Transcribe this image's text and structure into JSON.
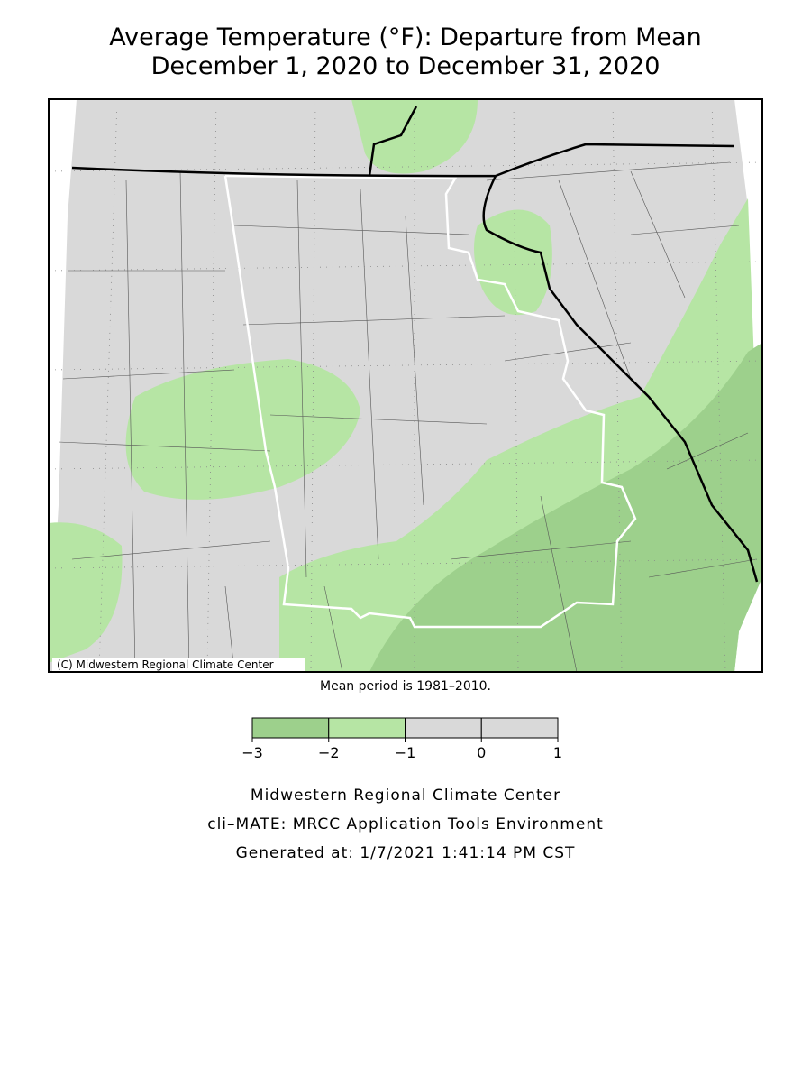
{
  "header": {
    "title_lines": [
      "Average Temperature (°F): Departure from Mean",
      "December 1, 2020 to December 31, 2020"
    ]
  },
  "map": {
    "copyright": "(C) Midwestern Regional Climate Center"
  },
  "note": "Mean period is 1981–2010.",
  "legend": {
    "ticks": [
      {
        "value": -3,
        "label": "−3"
      },
      {
        "value": -2,
        "label": "−2"
      },
      {
        "value": -1,
        "label": "−1"
      },
      0,
      1
    ],
    "colors": [
      "#9dd08c",
      "#b6e5a4",
      "#d9d9d9",
      "#d9d9d9"
    ]
  },
  "footer": [
    "Midwestern Regional Climate Center",
    "cli–MATE: MRCC Application Tools Environment",
    "Generated at: 1/7/2021 1:41:14 PM CST"
  ]
}
